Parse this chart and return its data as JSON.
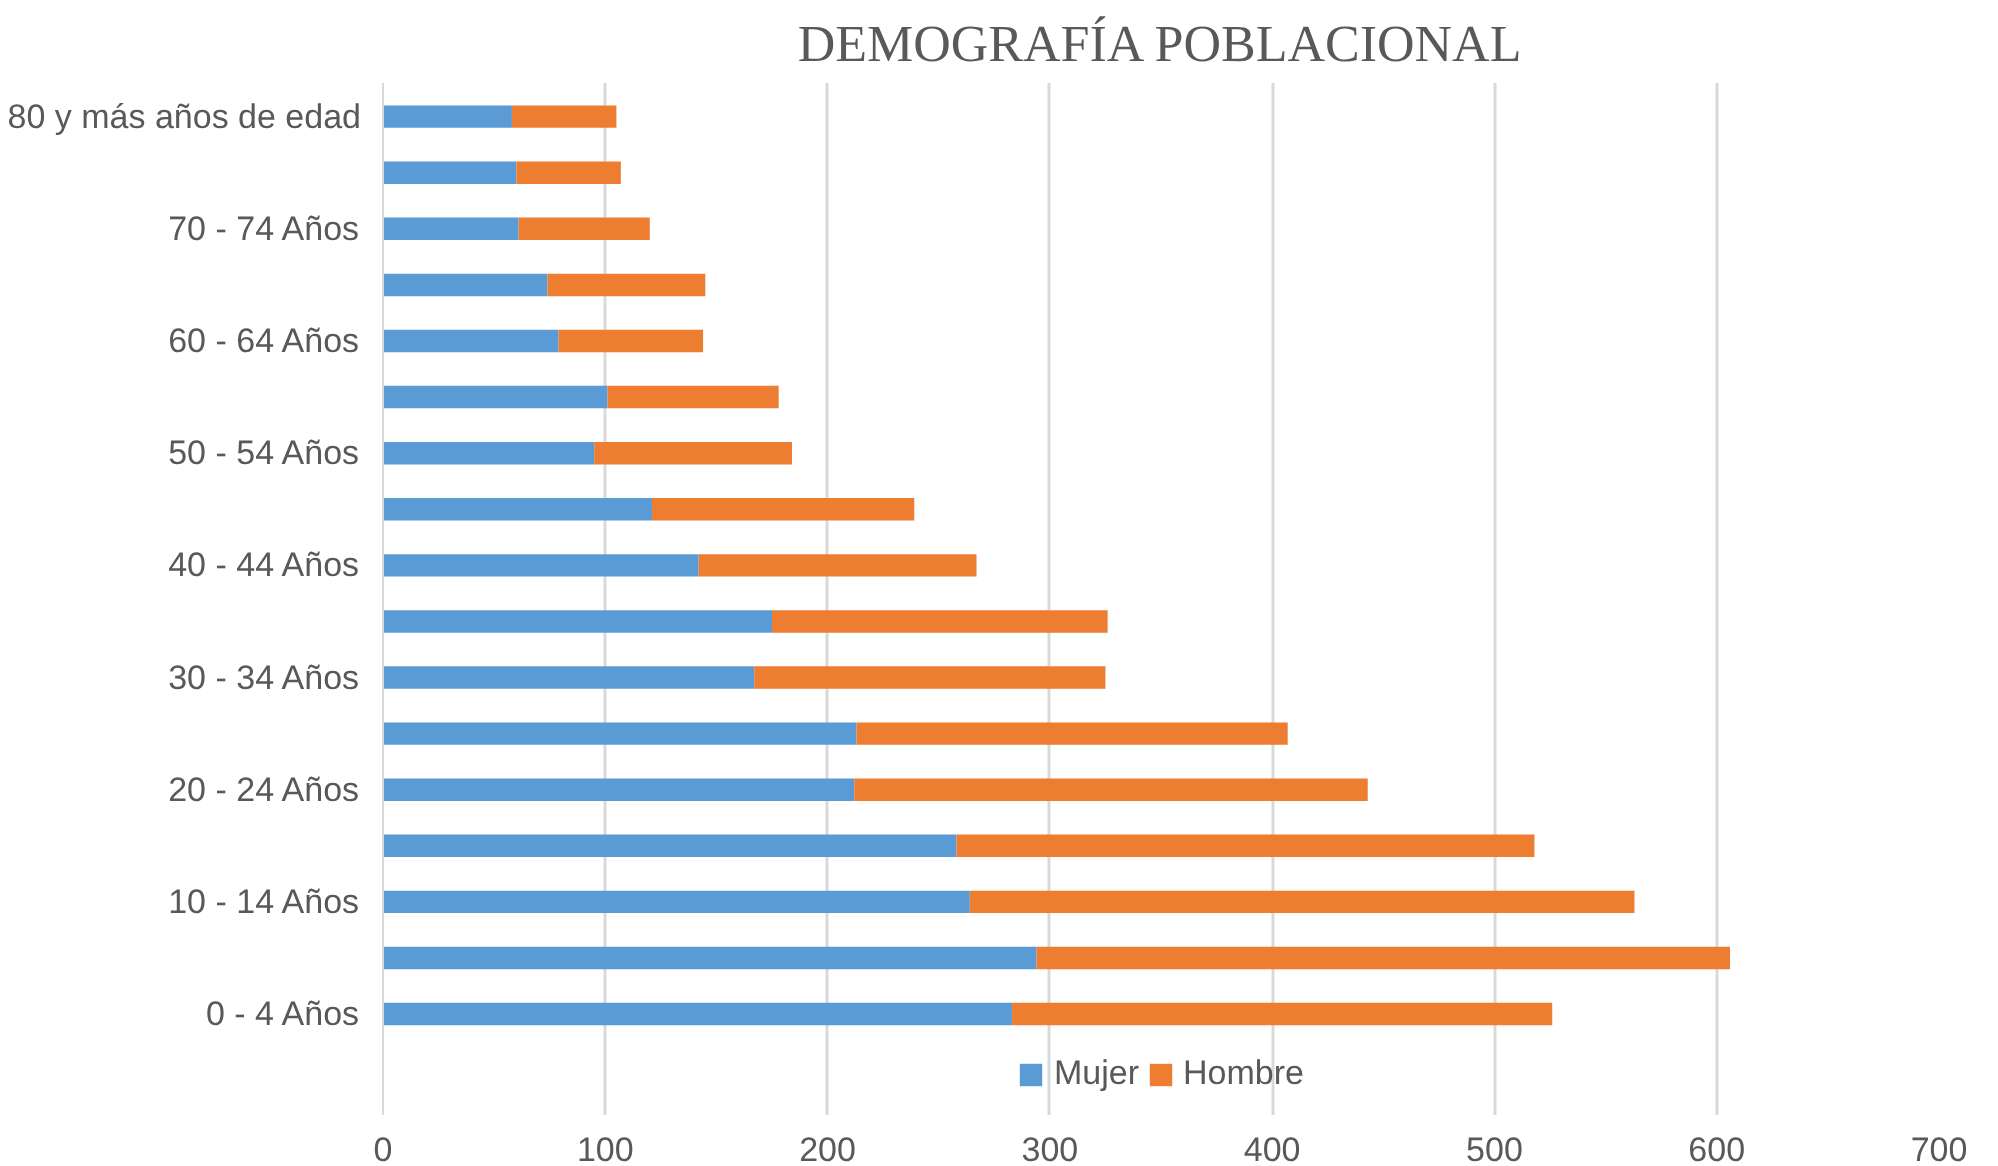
{
  "chart_data": {
    "type": "bar",
    "orientation": "horizontal",
    "stacked": true,
    "title": "DEMOGRAFÍA POBLACIONAL",
    "categories": [
      "80 y más años de edad",
      null,
      "70 - 74 Años",
      null,
      "60 - 64 Años",
      null,
      "50 - 54 Años",
      null,
      "40 - 44 Años",
      null,
      "30 - 34 Años",
      null,
      "20 - 24 Años",
      null,
      "10 - 14 Años",
      null,
      "0 - 4 Años"
    ],
    "series": [
      {
        "name": "Mujer",
        "color": "#5b9bd5",
        "values": [
          58,
          60,
          61,
          74,
          79,
          101,
          95,
          121,
          142,
          175,
          167,
          213,
          212,
          258,
          264,
          294,
          283
        ]
      },
      {
        "name": "Hombre",
        "color": "#ed7d31",
        "values": [
          47,
          47,
          59,
          71,
          65,
          77,
          89,
          118,
          125,
          151,
          158,
          194,
          231,
          260,
          299,
          312,
          243
        ]
      }
    ],
    "xlim": [
      0,
      700
    ],
    "xticks": [
      0,
      100,
      200,
      300,
      400,
      500,
      600,
      700
    ],
    "grid": "x",
    "legend": "bottom"
  }
}
